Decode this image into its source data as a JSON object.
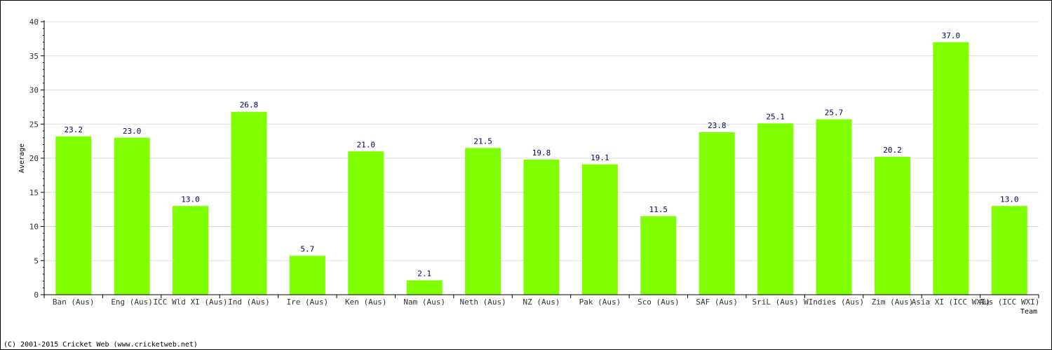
{
  "chart_data": {
    "type": "bar",
    "categories": [
      "Ban (Aus)",
      "Eng (Aus)",
      "ICC Wld XI (Aus)",
      "Ind (Aus)",
      "Ire (Aus)",
      "Ken (Aus)",
      "Nam (Aus)",
      "Neth (Aus)",
      "NZ (Aus)",
      "Pak (Aus)",
      "Sco (Aus)",
      "SAF (Aus)",
      "SriL (Aus)",
      "WIndies (Aus)",
      "Zim (Aus)",
      "Asia XI (ICC WXI)",
      "Aus (ICC WXI)"
    ],
    "values": [
      23.2,
      23.0,
      13.0,
      26.8,
      5.7,
      21.0,
      2.1,
      21.5,
      19.8,
      19.1,
      11.5,
      23.8,
      25.1,
      25.7,
      20.2,
      37.0,
      13.0
    ],
    "value_labels": [
      "23.2",
      "23.0",
      "13.0",
      "26.8",
      "5.7",
      "21.0",
      "2.1",
      "21.5",
      "19.8",
      "19.1",
      "11.5",
      "23.8",
      "25.1",
      "25.7",
      "20.2",
      "37.0",
      "13.0"
    ],
    "xlabel": "Team",
    "ylabel": "Average",
    "ylim": [
      0,
      40
    ],
    "yticks": [
      "0",
      "5",
      "10",
      "15",
      "20",
      "25",
      "30",
      "35",
      "40"
    ],
    "grid": true,
    "bar_color": "#80ff00"
  },
  "footer": {
    "copyright": "(C) 2001-2015 Cricket Web (www.cricketweb.net)"
  }
}
